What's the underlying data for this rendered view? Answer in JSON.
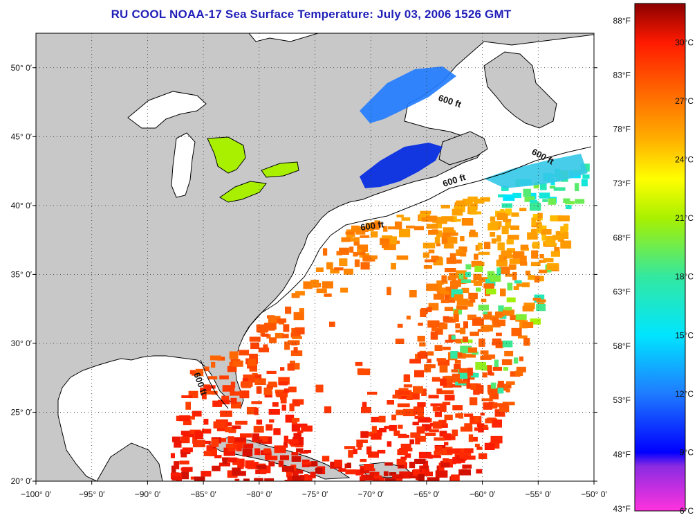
{
  "title": "RU COOL  NOAA-17  Sea Surface Temperature:  July 03, 2006 1526 GMT",
  "map": {
    "lon_range": [
      -100,
      -50
    ],
    "lat_range": [
      20,
      52.5
    ],
    "x_ticks": [
      {
        "lon": -100,
        "label": "−100° 0′"
      },
      {
        "lon": -95,
        "label": "−95° 0′"
      },
      {
        "lon": -90,
        "label": "−90° 0′"
      },
      {
        "lon": -85,
        "label": "−85° 0′"
      },
      {
        "lon": -80,
        "label": "−80° 0′"
      },
      {
        "lon": -75,
        "label": "−75° 0′"
      },
      {
        "lon": -70,
        "label": "−70° 0′"
      },
      {
        "lon": -65,
        "label": "−65° 0′"
      },
      {
        "lon": -60,
        "label": "−60° 0′"
      },
      {
        "lon": -55,
        "label": "−55° 0′"
      },
      {
        "lon": -50,
        "label": "−50° 0′"
      }
    ],
    "y_ticks": [
      {
        "lat": 50,
        "label": "50° 0′"
      },
      {
        "lat": 45,
        "label": "45° 0′"
      },
      {
        "lat": 40,
        "label": "40° 0′"
      },
      {
        "lat": 35,
        "label": "35° 0′"
      },
      {
        "lat": 30,
        "label": "30° 0′"
      },
      {
        "lat": 25,
        "label": "25° 0′"
      },
      {
        "lat": 20,
        "label": "20° 0′"
      }
    ],
    "contour_labels": [
      "600 ft",
      "600 ft",
      "600 ft",
      "600 ft",
      "600 ft"
    ],
    "colors": {
      "land": "#c8c8c8",
      "no_data": "#ffffff",
      "coast": "#000000",
      "grid": "#333333"
    }
  },
  "colorbar": {
    "range_c": [
      6,
      32
    ],
    "celsius_labels": [
      {
        "value": 30,
        "label": "30°C"
      },
      {
        "value": 27,
        "label": "27°C"
      },
      {
        "value": 24,
        "label": "24°C"
      },
      {
        "value": 21,
        "label": "21°C"
      },
      {
        "value": 18,
        "label": "18°C"
      },
      {
        "value": 15,
        "label": "15°C"
      },
      {
        "value": 12,
        "label": "12°C"
      },
      {
        "value": 9,
        "label": "9°C"
      },
      {
        "value": 6,
        "label": "6°C"
      }
    ],
    "fahrenheit_labels": [
      {
        "value": 88,
        "label": "88°F"
      },
      {
        "value": 83,
        "label": "83°F"
      },
      {
        "value": 78,
        "label": "78°F"
      },
      {
        "value": 73,
        "label": "73°F"
      },
      {
        "value": 68,
        "label": "68°F"
      },
      {
        "value": 63,
        "label": "63°F"
      },
      {
        "value": 58,
        "label": "58°F"
      },
      {
        "value": 53,
        "label": "53°F"
      },
      {
        "value": 48,
        "label": "48°F"
      },
      {
        "value": 43,
        "label": "43°F"
      }
    ],
    "gradient_stops": [
      {
        "value": 6,
        "color": "#ff33dd"
      },
      {
        "value": 8.3,
        "color": "#8a2be2"
      },
      {
        "value": 9,
        "color": "#0000ff"
      },
      {
        "value": 12,
        "color": "#1f7bff"
      },
      {
        "value": 15,
        "color": "#00e5ff"
      },
      {
        "value": 18,
        "color": "#33e8a0"
      },
      {
        "value": 21,
        "color": "#a8f000"
      },
      {
        "value": 23,
        "color": "#ffff00"
      },
      {
        "value": 25,
        "color": "#ffb000"
      },
      {
        "value": 27.5,
        "color": "#ff6600"
      },
      {
        "value": 30,
        "color": "#ff1a00"
      },
      {
        "value": 32,
        "color": "#8b0000"
      }
    ]
  }
}
